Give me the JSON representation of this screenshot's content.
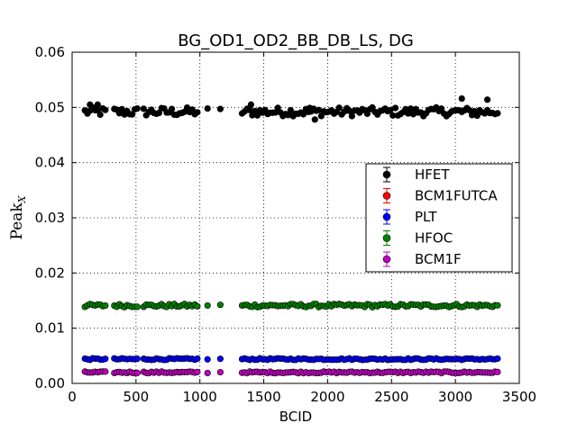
{
  "chart_data": {
    "type": "scatter",
    "title": "BG_OD1_OD2_BB_DB_LS, DG",
    "xlabel": "BCID",
    "ylabel_main": "Peak",
    "ylabel_sub": "X",
    "xlim": [
      0,
      3500
    ],
    "ylim": [
      0,
      0.06
    ],
    "x_ticks": [
      "0",
      "500",
      "1000",
      "1500",
      "2000",
      "2500",
      "3000",
      "3500"
    ],
    "y_ticks": [
      "0.00",
      "0.01",
      "0.02",
      "0.03",
      "0.04",
      "0.05",
      "0.06"
    ],
    "grid": true,
    "legend_position": "center-right",
    "bunch_trains": [
      [
        100,
        270,
        20
      ],
      [
        330,
        520,
        20
      ],
      [
        560,
        980,
        20
      ],
      [
        1060,
        1060,
        20
      ],
      [
        1160,
        1160,
        20
      ],
      [
        1330,
        3330,
        20
      ]
    ],
    "series": [
      {
        "name": "HFET",
        "color": "#000000",
        "level": 0.0492,
        "spread": 0.0008
      },
      {
        "name": "BCM1FUTCA",
        "color": "#ff0000",
        "level": null,
        "spread": 0
      },
      {
        "name": "PLT",
        "color": "#0000ff",
        "level": 0.0044,
        "spread": 0.00015
      },
      {
        "name": "HFOC",
        "color": "#008000",
        "level": 0.0141,
        "spread": 0.0003
      },
      {
        "name": "BCM1F",
        "color": "#bf00bf",
        "level": 0.002,
        "spread": 0.00015
      }
    ],
    "outliers": [
      {
        "series": "HFET",
        "x": 140,
        "y": 0.0505
      },
      {
        "series": "HFET",
        "x": 200,
        "y": 0.0505
      },
      {
        "series": "HFET",
        "x": 1400,
        "y": 0.0505
      },
      {
        "series": "HFET",
        "x": 1860,
        "y": 0.0499
      },
      {
        "series": "HFET",
        "x": 1900,
        "y": 0.0478
      },
      {
        "series": "HFET",
        "x": 3050,
        "y": 0.0516
      },
      {
        "series": "HFET",
        "x": 3170,
        "y": 0.0485
      },
      {
        "series": "HFET",
        "x": 3250,
        "y": 0.0514
      }
    ]
  }
}
